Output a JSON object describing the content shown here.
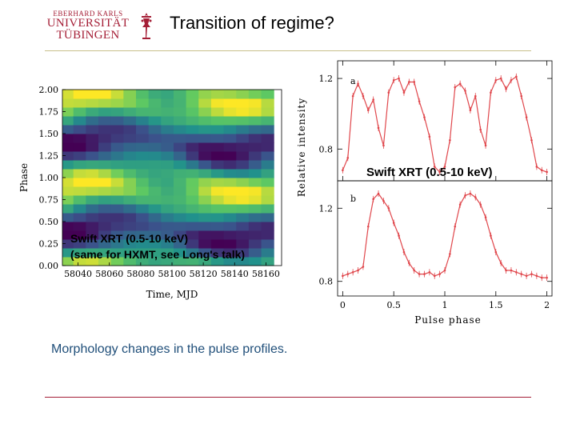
{
  "logo": {
    "line1": "EBERHARD KARLS",
    "line2": "UNIVERSITÄT",
    "line3": "TÜBINGEN"
  },
  "title": "Transition of regime?",
  "caption": "Morphology changes in the pulse profiles.",
  "colors": {
    "brand": "#a51e36",
    "caption": "#1f4e79",
    "profile": "#e0474c"
  },
  "left_figure": {
    "ylabel": "Phase",
    "xlabel": "Time, MJD",
    "yticks": [
      "2.00",
      "1.75",
      "1.50",
      "1.25",
      "1.00",
      "0.75",
      "0.50",
      "0.25",
      "0.00"
    ],
    "xticks": [
      "58040",
      "58060",
      "58080",
      "58100",
      "58120",
      "58140",
      "58160"
    ],
    "annotation_line1": "Swift XRT (0.5-10 keV)",
    "annotation_line2": "(same for HXMT, see Long's talk)"
  },
  "right_figure": {
    "ylabel": "Relative intensity",
    "xlabel": "Pulse phase",
    "panel_a_label": "a",
    "panel_b_label": "b",
    "panel_a_yticks": [
      "1.2",
      "0.8"
    ],
    "panel_b_yticks": [
      "1.2",
      "0.8"
    ],
    "xticks": [
      "0",
      "0.5",
      "1",
      "1.5",
      "2"
    ],
    "annotation": "Swift XRT (0.5-10 keV)"
  },
  "chart_data": [
    {
      "type": "heatmap",
      "title": "",
      "xlabel": "Time, MJD",
      "ylabel": "Phase",
      "xlim": [
        58030,
        58170
      ],
      "ylim": [
        0,
        2
      ],
      "x": [
        58033,
        58041,
        58049,
        58057,
        58065,
        58073,
        58081,
        58089,
        58097,
        58105,
        58113,
        58121,
        58129,
        58137,
        58145,
        58153,
        58161
      ],
      "y": [
        0.05,
        0.15,
        0.25,
        0.35,
        0.45,
        0.55,
        0.65,
        0.75,
        0.85,
        0.95,
        1.05,
        1.15,
        1.25,
        1.35,
        1.45,
        1.55,
        1.65,
        1.75,
        1.85,
        1.95
      ],
      "colormap": "viridis",
      "description_values": "relative intensity 0 (dark purple) to 1 (yellow)"
    },
    {
      "type": "line",
      "title": "",
      "xlabel": "Pulse phase",
      "ylabel": "Relative intensity",
      "panel": "a",
      "xlim": [
        -0.05,
        2.05
      ],
      "ylim": [
        0.62,
        1.3
      ],
      "series": [
        {
          "x": [
            0,
            0.05,
            0.1,
            0.15,
            0.2,
            0.25,
            0.3,
            0.35,
            0.4,
            0.45,
            0.5,
            0.55,
            0.6,
            0.65,
            0.7,
            0.75,
            0.8,
            0.85,
            0.9,
            0.95,
            1,
            1.05,
            1.1,
            1.15,
            1.2,
            1.25,
            1.3,
            1.35,
            1.4,
            1.45,
            1.5,
            1.55,
            1.6,
            1.65,
            1.7,
            1.75,
            1.8,
            1.85,
            1.9,
            1.95,
            2
          ],
          "y": [
            0.68,
            0.75,
            1.1,
            1.17,
            1.1,
            1.02,
            1.08,
            0.92,
            0.82,
            1.12,
            1.19,
            1.2,
            1.12,
            1.18,
            1.18,
            1.07,
            0.98,
            0.87,
            0.7,
            0.67,
            0.7,
            0.85,
            1.15,
            1.17,
            1.13,
            1.02,
            1.1,
            0.91,
            0.82,
            1.12,
            1.19,
            1.2,
            1.14,
            1.19,
            1.21,
            1.1,
            0.98,
            0.85,
            0.7,
            0.68,
            0.67
          ]
        }
      ]
    },
    {
      "type": "line",
      "title": "",
      "xlabel": "Pulse phase",
      "ylabel": "Relative intensity",
      "panel": "b",
      "xlim": [
        -0.05,
        2.05
      ],
      "ylim": [
        0.72,
        1.35
      ],
      "series": [
        {
          "x": [
            0,
            0.05,
            0.1,
            0.15,
            0.2,
            0.25,
            0.3,
            0.35,
            0.4,
            0.45,
            0.5,
            0.55,
            0.6,
            0.65,
            0.7,
            0.75,
            0.8,
            0.85,
            0.9,
            0.95,
            1,
            1.05,
            1.1,
            1.15,
            1.2,
            1.25,
            1.3,
            1.35,
            1.4,
            1.45,
            1.5,
            1.55,
            1.6,
            1.65,
            1.7,
            1.75,
            1.8,
            1.85,
            1.9,
            1.95,
            2
          ],
          "y": [
            0.83,
            0.84,
            0.85,
            0.86,
            0.88,
            1.1,
            1.25,
            1.28,
            1.24,
            1.2,
            1.12,
            1.05,
            0.96,
            0.9,
            0.86,
            0.84,
            0.84,
            0.85,
            0.83,
            0.84,
            0.86,
            0.95,
            1.1,
            1.22,
            1.27,
            1.28,
            1.26,
            1.22,
            1.15,
            1.05,
            0.96,
            0.9,
            0.86,
            0.86,
            0.85,
            0.84,
            0.83,
            0.84,
            0.83,
            0.82,
            0.82
          ]
        }
      ]
    }
  ]
}
